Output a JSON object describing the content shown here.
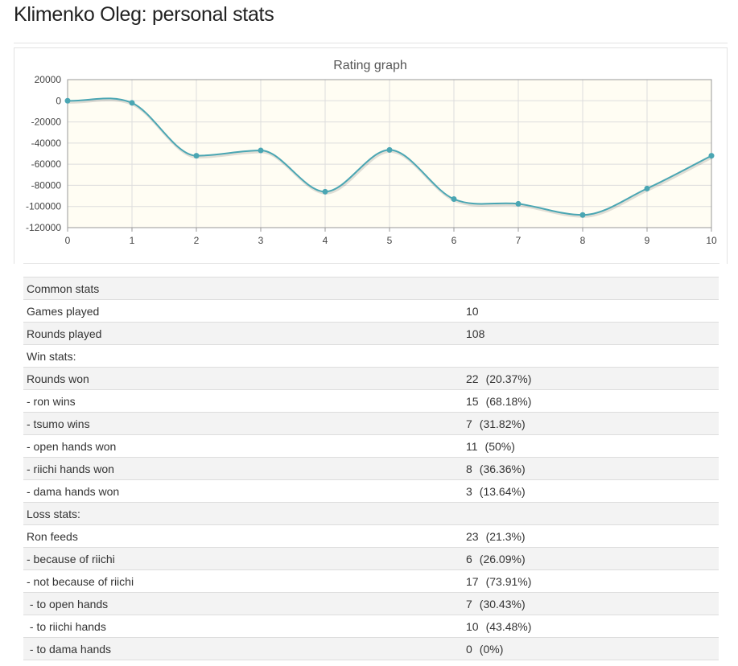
{
  "page": {
    "title": "Klimenko Oleg: personal stats"
  },
  "chart_data": {
    "type": "line",
    "title": "Rating graph",
    "xlabel": "",
    "ylabel": "",
    "x": [
      0,
      1,
      2,
      3,
      4,
      5,
      6,
      7,
      8,
      9,
      10
    ],
    "series": [
      {
        "values": [
          0,
          -2000,
          -52000,
          -47000,
          -86000,
          -46500,
          -93000,
          -97500,
          -108000,
          -83000,
          -52000
        ]
      }
    ],
    "xlim": [
      0,
      10
    ],
    "ylim": [
      -120000,
      20000
    ],
    "x_ticks": [
      "0",
      "1",
      "2",
      "3",
      "4",
      "5",
      "6",
      "7",
      "8",
      "9",
      "10"
    ],
    "y_ticks": [
      "20000",
      "0",
      "-20000",
      "-40000",
      "-60000",
      "-80000",
      "-100000",
      "-120000"
    ],
    "grid": true,
    "legend": "none",
    "colors": {
      "line": "#4aa6b3",
      "plot_bg": "#fffdf3",
      "grid": "#dddddd",
      "axis": "#999999"
    }
  },
  "stats": {
    "rows": [
      {
        "label": "Common stats",
        "value": "",
        "pct": ""
      },
      {
        "label": "Games played",
        "value": "10",
        "pct": ""
      },
      {
        "label": "Rounds played",
        "value": "108",
        "pct": ""
      },
      {
        "label": "Win stats:",
        "value": "",
        "pct": ""
      },
      {
        "label": "Rounds won",
        "value": "22",
        "pct": "(20.37%)"
      },
      {
        "label": "- ron wins",
        "value": "15",
        "pct": "(68.18%)"
      },
      {
        "label": "- tsumo wins",
        "value": "7",
        "pct": "(31.82%)"
      },
      {
        "label": "- open hands won",
        "value": "11",
        "pct": "(50%)"
      },
      {
        "label": "- riichi hands won",
        "value": "8",
        "pct": "(36.36%)"
      },
      {
        "label": "- dama hands won",
        "value": "3",
        "pct": "(13.64%)"
      },
      {
        "label": "Loss stats:",
        "value": "",
        "pct": ""
      },
      {
        "label": "Ron feeds",
        "value": "23",
        "pct": "(21.3%)"
      },
      {
        "label": "- because of riichi",
        "value": "6",
        "pct": "(26.09%)"
      },
      {
        "label": "- not because of riichi",
        "value": "17",
        "pct": "(73.91%)"
      },
      {
        "label": " - to open hands",
        "value": "7",
        "pct": "(30.43%)"
      },
      {
        "label": " - to riichi hands",
        "value": "10",
        "pct": "(43.48%)"
      },
      {
        "label": " - to dama hands",
        "value": "0",
        "pct": "(0%)"
      }
    ]
  }
}
